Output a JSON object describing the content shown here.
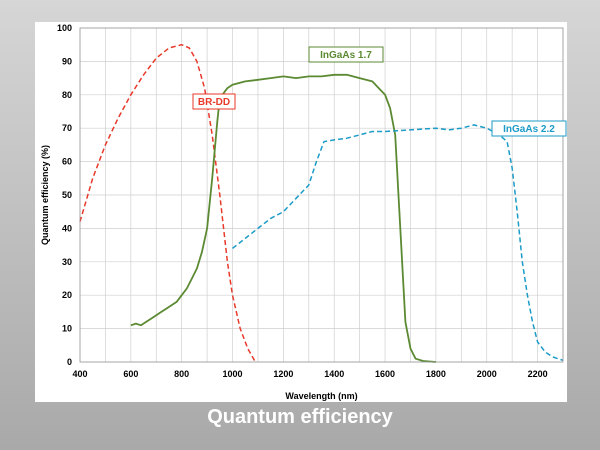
{
  "caption": "Quantum efficiency",
  "colors": {
    "background_top": "#d6d6d6",
    "background_bottom": "#a9a9a9",
    "brdd": "#e8392a",
    "ingaas17": "#5b8a32",
    "ingaas22": "#1b9bc8",
    "grid": "#cfcfcf"
  },
  "chart_data": {
    "type": "line",
    "title": "",
    "xlabel": "Wavelength (nm)",
    "ylabel": "Quantum efficiency (%)",
    "xlim": [
      400,
      2300
    ],
    "ylim": [
      0,
      100
    ],
    "xticks": [
      400,
      600,
      800,
      1000,
      1200,
      1400,
      1600,
      1800,
      2000,
      2200
    ],
    "yticks": [
      0,
      10,
      20,
      30,
      40,
      50,
      60,
      70,
      80,
      90,
      100
    ],
    "grid": true,
    "series": [
      {
        "name": "BR-DD",
        "style": "dashed",
        "color": "#e8392a",
        "x": [
          400,
          450,
          500,
          550,
          600,
          650,
          700,
          750,
          800,
          830,
          860,
          890,
          920,
          950,
          980,
          1000,
          1030,
          1060,
          1090
        ],
        "y": [
          42,
          55,
          65,
          73,
          80,
          86,
          91,
          94,
          95,
          94,
          90,
          82,
          68,
          50,
          30,
          20,
          10,
          4,
          0
        ]
      },
      {
        "name": "InGaAs 1.7",
        "style": "solid",
        "color": "#5b8a32",
        "x": [
          600,
          620,
          640,
          660,
          680,
          700,
          720,
          740,
          760,
          780,
          800,
          820,
          840,
          860,
          880,
          900,
          920,
          940,
          950,
          960,
          980,
          1000,
          1050,
          1100,
          1150,
          1200,
          1250,
          1300,
          1350,
          1400,
          1450,
          1500,
          1550,
          1600,
          1620,
          1640,
          1660,
          1680,
          1700,
          1720,
          1750,
          1800
        ],
        "y": [
          11,
          11.5,
          11,
          12,
          13,
          14,
          15,
          16,
          17,
          18,
          20,
          22,
          25,
          28,
          33,
          40,
          55,
          72,
          79,
          80,
          82,
          83,
          84,
          84.5,
          85,
          85.5,
          85,
          85.5,
          85.5,
          86,
          86,
          85,
          84,
          80,
          76,
          68,
          40,
          12,
          4,
          1,
          0.3,
          0
        ]
      },
      {
        "name": "InGaAs 2.2",
        "style": "dashed",
        "color": "#1b9bc8",
        "x": [
          1000,
          1050,
          1100,
          1150,
          1200,
          1250,
          1300,
          1330,
          1360,
          1400,
          1450,
          1500,
          1550,
          1600,
          1700,
          1800,
          1850,
          1900,
          1950,
          2000,
          2050,
          2080,
          2100,
          2120,
          2140,
          2160,
          2180,
          2200,
          2230,
          2260,
          2300
        ],
        "y": [
          34,
          37,
          40,
          43,
          45,
          49,
          53,
          60,
          66,
          66.5,
          67,
          68,
          69,
          69,
          69.5,
          70,
          69.5,
          70,
          71,
          70,
          68,
          66,
          58,
          45,
          30,
          20,
          12,
          6,
          3,
          1.5,
          0.5
        ]
      }
    ],
    "annotations": [
      {
        "text": "BR-DD",
        "series": "BR-DD"
      },
      {
        "text": "InGaAs 1.7",
        "series": "InGaAs 1.7"
      },
      {
        "text": "InGaAs 2.2",
        "series": "InGaAs 2.2"
      }
    ]
  }
}
